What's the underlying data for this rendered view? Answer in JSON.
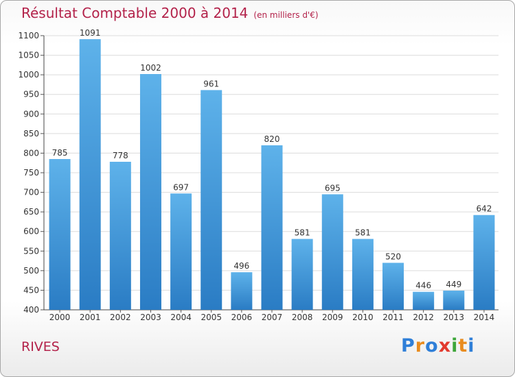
{
  "title": "Résultat Comptable 2000 à 2014",
  "subtitle": "(en milliers d'€)",
  "place": "RIVES",
  "logo": {
    "letters": [
      "P",
      "r",
      "o",
      "x",
      "i",
      "t",
      "i"
    ],
    "colors": [
      "#2f7fd8",
      "#e98c1f",
      "#2f7fd8",
      "#e23a2e",
      "#3da63a",
      "#e98c1f",
      "#2f7fd8"
    ]
  },
  "colors": {
    "bar": "#3f99de",
    "title": "#b3224a"
  },
  "chart_data": {
    "type": "bar",
    "categories": [
      "2000",
      "2001",
      "2002",
      "2003",
      "2004",
      "2005",
      "2006",
      "2007",
      "2008",
      "2009",
      "2010",
      "2011",
      "2012",
      "2013",
      "2014"
    ],
    "values": [
      785,
      1091,
      778,
      1002,
      697,
      961,
      496,
      820,
      581,
      695,
      581,
      520,
      446,
      449,
      642
    ],
    "ylim": [
      400,
      1100
    ],
    "yticks": [
      400,
      450,
      500,
      550,
      600,
      650,
      700,
      750,
      800,
      850,
      900,
      950,
      1000,
      1050,
      1100
    ],
    "grid": true
  }
}
